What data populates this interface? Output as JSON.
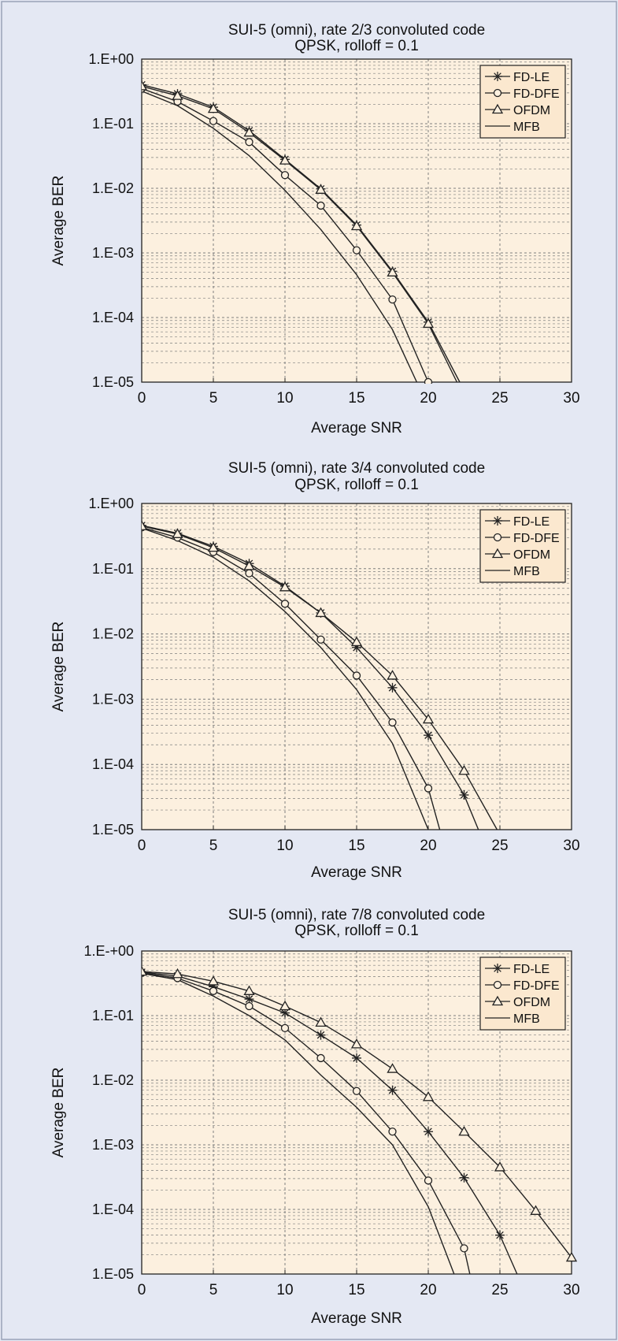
{
  "colors": {
    "page_background": "#e4e8f3",
    "plot_background": "#fcf0df",
    "line": "#222222",
    "grid": "#7f7f7f",
    "legend_background": "#fbe8cf"
  },
  "chart_data": [
    {
      "type": "line",
      "title_line1": "SUI-5 (omni), rate 2/3 convoluted code",
      "title_line2": "QPSK, rolloff = 0.1",
      "xlabel": "Average SNR",
      "ylabel": "Average BER",
      "xlim": [
        0,
        30
      ],
      "ylim": [
        1e-05,
        1
      ],
      "y_scale": "log",
      "grid": true,
      "legend_position": "top-right",
      "x_ticks": [
        "0",
        "5",
        "10",
        "15",
        "20",
        "25",
        "30"
      ],
      "y_ticks": [
        "1.E+00",
        "1.E-01",
        "1.E-02",
        "1.E-03",
        "1.E-04",
        "1.E-05"
      ],
      "series": [
        {
          "name": "FD-LE",
          "marker": "star",
          "x": [
            0,
            2.5,
            5,
            7.5,
            10,
            12.5,
            15,
            17.5,
            20,
            22.2
          ],
          "y": [
            0.4,
            0.29,
            0.18,
            0.078,
            0.028,
            0.0098,
            0.0027,
            0.00052,
            8.5e-05,
            1e-05
          ],
          "marker_x": [
            0,
            2.5,
            5,
            7.5,
            10,
            12.5,
            15,
            17.5,
            20
          ]
        },
        {
          "name": "FD-DFE",
          "marker": "circle",
          "x": [
            0,
            2.5,
            5,
            7.5,
            10,
            12.5,
            15,
            17.5,
            20
          ],
          "y": [
            0.35,
            0.22,
            0.11,
            0.052,
            0.016,
            0.0054,
            0.0011,
            0.00019,
            1e-05
          ],
          "marker_x": [
            0,
            2.5,
            5,
            7.5,
            10,
            12.5,
            15,
            17.5,
            20
          ]
        },
        {
          "name": "OFDM",
          "marker": "triangle",
          "x": [
            0,
            2.5,
            5,
            7.5,
            10,
            12.5,
            15,
            17.5,
            20,
            22
          ],
          "y": [
            0.38,
            0.27,
            0.17,
            0.073,
            0.027,
            0.0095,
            0.0026,
            0.0005,
            8e-05,
            1e-05
          ],
          "marker_x": [
            0,
            2.5,
            5,
            7.5,
            10,
            12.5,
            15,
            17.5,
            20
          ]
        },
        {
          "name": "MFB",
          "marker": "none",
          "x": [
            0,
            2.5,
            5,
            7.5,
            10,
            12.5,
            15,
            17.5,
            19.2
          ],
          "y": [
            0.32,
            0.19,
            0.085,
            0.032,
            0.0093,
            0.0023,
            0.00046,
            6.5e-05,
            1e-05
          ],
          "marker_x": []
        }
      ]
    },
    {
      "type": "line",
      "title_line1": "SUI-5 (omni), rate 3/4 convoluted code",
      "title_line2": "QPSK, rolloff = 0.1",
      "xlabel": "Average SNR",
      "ylabel": "Average BER",
      "xlim": [
        0,
        30
      ],
      "ylim": [
        1e-05,
        1
      ],
      "y_scale": "log",
      "grid": true,
      "legend_position": "top-right",
      "x_ticks": [
        "0",
        "5",
        "10",
        "15",
        "20",
        "25",
        "30"
      ],
      "y_ticks": [
        "1.E+00",
        "1.E-01",
        "1.E-02",
        "1.E-03",
        "1.E-04",
        "1.E-05"
      ],
      "series": [
        {
          "name": "FD-LE",
          "marker": "star",
          "x": [
            0,
            2.5,
            5,
            7.5,
            10,
            12.5,
            15,
            17.5,
            20,
            22.5,
            23.5
          ],
          "y": [
            0.46,
            0.35,
            0.22,
            0.12,
            0.054,
            0.021,
            0.0062,
            0.0015,
            0.00028,
            3.4e-05,
            1e-05
          ],
          "marker_x": [
            0,
            2.5,
            5,
            7.5,
            10,
            12.5,
            15,
            17.5,
            20,
            22.5
          ]
        },
        {
          "name": "FD-DFE",
          "marker": "circle",
          "x": [
            0,
            2.5,
            5,
            7.5,
            10,
            12.5,
            15,
            17.5,
            20,
            20.8
          ],
          "y": [
            0.43,
            0.3,
            0.18,
            0.085,
            0.029,
            0.0082,
            0.0023,
            0.00044,
            4.3e-05,
            1e-05
          ],
          "marker_x": [
            0,
            2.5,
            5,
            7.5,
            10,
            12.5,
            15,
            17.5,
            20
          ]
        },
        {
          "name": "OFDM",
          "marker": "triangle",
          "x": [
            0,
            2.5,
            5,
            7.5,
            10,
            12.5,
            15,
            17.5,
            20,
            22.5,
            24.8
          ],
          "y": [
            0.45,
            0.34,
            0.21,
            0.11,
            0.052,
            0.021,
            0.0075,
            0.0023,
            0.00049,
            8e-05,
            1e-05
          ],
          "marker_x": [
            0,
            2.5,
            5,
            7.5,
            10,
            12.5,
            15,
            17.5,
            20,
            22.5
          ]
        },
        {
          "name": "MFB",
          "marker": "none",
          "x": [
            0,
            2.5,
            5,
            7.5,
            10,
            12.5,
            15,
            17.5,
            20
          ],
          "y": [
            0.42,
            0.27,
            0.15,
            0.065,
            0.022,
            0.0062,
            0.0014,
            0.00021,
            1e-05
          ],
          "marker_x": []
        }
      ]
    },
    {
      "type": "line",
      "title_line1": "SUI-5 (omni), rate 7/8 convoluted code",
      "title_line2": "QPSK, rolloff = 0.1",
      "xlabel": "Average SNR",
      "ylabel": "Average BER",
      "xlim": [
        0,
        30
      ],
      "ylim": [
        1e-05,
        1
      ],
      "y_scale": "log",
      "grid": true,
      "legend_position": "top-right",
      "x_ticks": [
        "0",
        "5",
        "10",
        "15",
        "20",
        "25",
        "30"
      ],
      "y_ticks": [
        "1.E-+00",
        "1.E-01",
        "1.E-02",
        "1.E-03",
        "1.E-04",
        "1.E-05"
      ],
      "series": [
        {
          "name": "FD-LE",
          "marker": "star",
          "x": [
            0,
            2.5,
            5,
            7.5,
            10,
            12.5,
            15,
            17.5,
            20,
            22.5,
            25,
            26.2
          ],
          "y": [
            0.47,
            0.41,
            0.28,
            0.18,
            0.11,
            0.05,
            0.022,
            0.007,
            0.0016,
            0.00031,
            4e-05,
            1e-05
          ],
          "marker_x": [
            0,
            2.5,
            5,
            7.5,
            10,
            12.5,
            15,
            17.5,
            20,
            22.5,
            25
          ]
        },
        {
          "name": "FD-DFE",
          "marker": "circle",
          "x": [
            0,
            2.5,
            5,
            7.5,
            10,
            12.5,
            15,
            17.5,
            20,
            22.5,
            22.9
          ],
          "y": [
            0.46,
            0.38,
            0.24,
            0.14,
            0.064,
            0.022,
            0.0068,
            0.0016,
            0.00028,
            2.5e-05,
            1e-05
          ],
          "marker_x": [
            0,
            2.5,
            5,
            7.5,
            10,
            12.5,
            15,
            17.5,
            20,
            22.5
          ]
        },
        {
          "name": "OFDM",
          "marker": "triangle",
          "x": [
            0,
            2.5,
            5,
            7.5,
            10,
            12.5,
            15,
            17.5,
            20,
            22.5,
            25,
            27.5,
            30
          ],
          "y": [
            0.48,
            0.44,
            0.34,
            0.24,
            0.14,
            0.078,
            0.036,
            0.015,
            0.0055,
            0.0016,
            0.00045,
            9.5e-05,
            1.8e-05
          ],
          "marker_x": [
            0,
            2.5,
            5,
            7.5,
            10,
            12.5,
            15,
            17.5,
            20,
            22.5,
            25,
            27.5,
            30
          ]
        },
        {
          "name": "MFB",
          "marker": "none",
          "x": [
            0,
            2.5,
            5,
            7.5,
            10,
            12.5,
            15,
            17.5,
            20,
            21.8
          ],
          "y": [
            0.45,
            0.36,
            0.2,
            0.1,
            0.042,
            0.012,
            0.0038,
            0.001,
            0.00011,
            1e-05
          ],
          "marker_x": []
        }
      ]
    }
  ]
}
